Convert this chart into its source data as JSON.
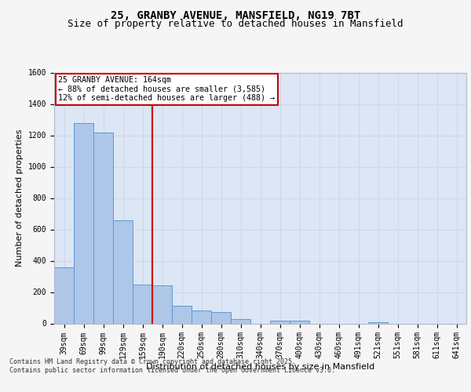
{
  "title_line1": "25, GRANBY AVENUE, MANSFIELD, NG19 7BT",
  "title_line2": "Size of property relative to detached houses in Mansfield",
  "xlabel": "Distribution of detached houses by size in Mansfield",
  "ylabel": "Number of detached properties",
  "bin_labels": [
    "39sqm",
    "69sqm",
    "99sqm",
    "129sqm",
    "159sqm",
    "190sqm",
    "220sqm",
    "250sqm",
    "280sqm",
    "310sqm",
    "340sqm",
    "370sqm",
    "400sqm",
    "430sqm",
    "460sqm",
    "491sqm",
    "521sqm",
    "551sqm",
    "581sqm",
    "611sqm",
    "641sqm"
  ],
  "bar_values": [
    360,
    1280,
    1220,
    660,
    250,
    245,
    115,
    85,
    75,
    30,
    0,
    20,
    20,
    0,
    0,
    0,
    10,
    0,
    0,
    0,
    0
  ],
  "bar_color": "#aec6e8",
  "bar_edge_color": "#5b9bd5",
  "grid_color": "#cdd8ea",
  "background_color": "#dce6f5",
  "vline_color": "#cc0000",
  "annotation_text": "25 GRANBY AVENUE: 164sqm\n← 88% of detached houses are smaller (3,585)\n12% of semi-detached houses are larger (488) →",
  "annotation_box_color": "#ffffff",
  "annotation_box_edge": "#cc0000",
  "ylim": [
    0,
    1600
  ],
  "yticks": [
    0,
    200,
    400,
    600,
    800,
    1000,
    1200,
    1400,
    1600
  ],
  "footer_text": "Contains HM Land Registry data © Crown copyright and database right 2025.\nContains public sector information licensed under the Open Government Licence v3.0.",
  "title_fontsize": 10,
  "subtitle_fontsize": 9,
  "tick_fontsize": 7,
  "label_fontsize": 8,
  "fig_width": 6.0,
  "fig_height": 5.0
}
